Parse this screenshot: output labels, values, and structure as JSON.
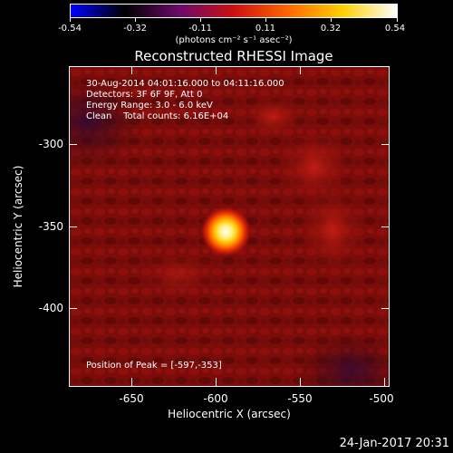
{
  "colorbar": {
    "ticks": [
      "-0.54",
      "-0.32",
      "-0.11",
      "0.11",
      "0.32",
      "0.54"
    ],
    "unit_label": "(photons cm⁻² s⁻¹ asec⁻²)",
    "colors": [
      "#0000ff",
      "#000000",
      "#6b0a6b",
      "#cc1010",
      "#ff6600",
      "#ffd000",
      "#ffffff"
    ]
  },
  "plot": {
    "title": "Reconstructed RHESSI Image",
    "info_lines": [
      "30-Aug-2014 04:01:16.000 to 04:11:16.000",
      "Detectors: 3F 6F 9F, Att 0",
      "Energy Range: 3.0 - 6.0 keV",
      "Clean    Total counts: 6.16E+04"
    ],
    "peak_label": "Position of Peak = [-597,-353]",
    "xlabel": "Heliocentric X (arcsec)",
    "ylabel": "Heliocentric Y (arcsec)",
    "xticks": [
      "-650",
      "-600",
      "-550",
      "-500"
    ],
    "yticks": [
      "-300",
      "-350",
      "-400"
    ],
    "peak": {
      "x": -597,
      "y": -353
    },
    "xrange": [
      -690,
      -500
    ],
    "yrange": [
      -445,
      -255
    ]
  },
  "timestamp": "24-Jan-2017 20:31"
}
